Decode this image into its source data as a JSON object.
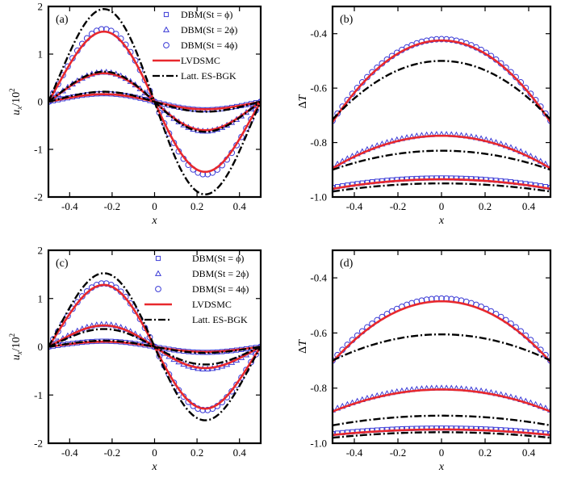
{
  "figure": {
    "colors": {
      "dbm_markers": "#3b3bd6",
      "lvdsmc": "#e8282d",
      "es_bgk": "#000000",
      "frame": "#000000"
    }
  },
  "chart_data": [
    {
      "type": "line",
      "panel_label": "(a)",
      "xlabel": "x",
      "ylabel": "u_x/10^2",
      "xlim": [
        -0.5,
        0.5
      ],
      "ylim": [
        -2,
        2
      ],
      "xticks": [
        -0.4,
        -0.2,
        0,
        0.2,
        0.4
      ],
      "yticks": [
        -2,
        -1,
        0,
        1,
        2
      ],
      "xtick_labels": [
        "-0.4",
        "-0.2",
        "0",
        "0.2",
        "0.4"
      ],
      "ytick_labels": [
        "-2",
        "-1",
        "0",
        "1",
        "2"
      ],
      "legend": {
        "position": "top-right",
        "entries": [
          {
            "label": "DBM(St = ϕ)",
            "marker": "square"
          },
          {
            "label": "DBM(St = 2ϕ)",
            "marker": "triangle"
          },
          {
            "label": "DBM(St = 4ϕ)",
            "marker": "circle"
          },
          {
            "label": "LVDSMC",
            "line": "solid"
          },
          {
            "label": "Latt. ES-BGK",
            "line": "dashdot"
          }
        ]
      },
      "series": [
        {
          "name": "DBM(St = ϕ)",
          "kind": "markers",
          "marker": "square",
          "shape": "antisym",
          "amplitude": 0.16
        },
        {
          "name": "DBM(St = 2ϕ)",
          "kind": "markers",
          "marker": "triangle",
          "shape": "antisym",
          "amplitude": 0.59
        },
        {
          "name": "DBM(St = 4ϕ)",
          "kind": "markers",
          "marker": "circle",
          "shape": "antisym",
          "amplitude": 1.45
        },
        {
          "name": "LVDSMC",
          "kind": "line",
          "style": "solid",
          "shape": "antisym",
          "amplitudes": [
            0.15,
            0.57,
            1.4
          ]
        },
        {
          "name": "Latt. ES-BGK",
          "kind": "line",
          "style": "dashdot",
          "shape": "antisym",
          "amplitudes": [
            0.2,
            0.6,
            1.85
          ]
        }
      ]
    },
    {
      "type": "line",
      "panel_label": "(b)",
      "xlabel": "x",
      "ylabel": "ΔT",
      "xlim": [
        -0.5,
        0.5
      ],
      "ylim": [
        -1.0,
        -0.3
      ],
      "xticks": [
        -0.4,
        -0.2,
        0,
        0.2,
        0.4
      ],
      "yticks": [
        -1.0,
        -0.8,
        -0.6,
        -0.4
      ],
      "xtick_labels": [
        "-0.4",
        "-0.2",
        "0",
        "0.2",
        "0.4"
      ],
      "ytick_labels": [
        "-1.0",
        "-0.8",
        "-0.6",
        "-0.4"
      ],
      "series": [
        {
          "name": "DBM(St = ϕ)",
          "kind": "markers",
          "marker": "square",
          "shape": "parabola",
          "center": -0.93,
          "edge": -0.965
        },
        {
          "name": "DBM(St = 2ϕ)",
          "kind": "markers",
          "marker": "triangle",
          "shape": "parabola",
          "center": -0.77,
          "edge": -0.89
        },
        {
          "name": "DBM(St = 4ϕ)",
          "kind": "markers",
          "marker": "circle",
          "shape": "parabola",
          "center": -0.42,
          "edge": -0.72
        },
        {
          "name": "LVDSMC",
          "kind": "line",
          "style": "solid",
          "shape": "parabola",
          "curves": [
            [
              -0.935,
              -0.97
            ],
            [
              -0.775,
              -0.895
            ],
            [
              -0.425,
              -0.725
            ]
          ]
        },
        {
          "name": "Latt. ES-BGK",
          "kind": "line",
          "style": "dashdot",
          "shape": "parabola",
          "curves": [
            [
              -0.95,
              -0.98
            ],
            [
              -0.83,
              -0.9
            ],
            [
              -0.5,
              -0.715
            ]
          ]
        }
      ]
    },
    {
      "type": "line",
      "panel_label": "(c)",
      "xlabel": "x",
      "ylabel": "u_x/10^2",
      "xlim": [
        -0.5,
        0.5
      ],
      "ylim": [
        -2,
        2
      ],
      "xticks": [
        -0.4,
        -0.2,
        0,
        0.2,
        0.4
      ],
      "yticks": [
        -2,
        -1,
        0,
        1,
        2
      ],
      "xtick_labels": [
        "-0.4",
        "-0.2",
        "0",
        "0.2",
        "0.4"
      ],
      "ytick_labels": [
        "-2",
        "-1",
        "0",
        "1",
        "2"
      ],
      "legend": {
        "position": "top-right",
        "entries": [
          {
            "label": "DBM(St = ϕ)",
            "marker": "square"
          },
          {
            "label": "DBM(St = 2ϕ)",
            "marker": "triangle"
          },
          {
            "label": "DBM(St = 4ϕ)",
            "marker": "circle"
          },
          {
            "label": "LVDSMC",
            "line": "solid"
          },
          {
            "label": "Latt. ES-BGK",
            "line": "dashdot"
          }
        ]
      },
      "series": [
        {
          "name": "DBM(St = ϕ)",
          "kind": "markers",
          "marker": "square",
          "shape": "antisym",
          "amplitude": 0.11
        },
        {
          "name": "DBM(St = 2ϕ)",
          "kind": "markers",
          "marker": "triangle",
          "shape": "antisym",
          "amplitude": 0.44
        },
        {
          "name": "DBM(St = 4ϕ)",
          "kind": "markers",
          "marker": "circle",
          "shape": "antisym",
          "amplitude": 1.25
        },
        {
          "name": "LVDSMC",
          "kind": "line",
          "style": "solid",
          "shape": "antisym",
          "amplitudes": [
            0.1,
            0.42,
            1.22
          ]
        },
        {
          "name": "Latt. ES-BGK",
          "kind": "line",
          "style": "dashdot",
          "shape": "antisym",
          "amplitudes": [
            0.12,
            0.35,
            1.45
          ]
        }
      ]
    },
    {
      "type": "line",
      "panel_label": "(d)",
      "xlabel": "x",
      "ylabel": "ΔT",
      "xlim": [
        -0.5,
        0.5
      ],
      "ylim": [
        -1.0,
        -0.3
      ],
      "xticks": [
        -0.4,
        -0.2,
        0,
        0.2,
        0.4
      ],
      "yticks": [
        -1.0,
        -0.8,
        -0.6,
        -0.4
      ],
      "xtick_labels": [
        "-0.4",
        "-0.2",
        "0",
        "0.2",
        "0.4"
      ],
      "ytick_labels": [
        "-1.0",
        "-0.8",
        "-0.6",
        "-0.4"
      ],
      "series": [
        {
          "name": "DBM(St = ϕ)",
          "kind": "markers",
          "marker": "square",
          "shape": "parabola",
          "center": -0.945,
          "edge": -0.965
        },
        {
          "name": "DBM(St = 2ϕ)",
          "kind": "markers",
          "marker": "triangle",
          "shape": "parabola",
          "center": -0.8,
          "edge": -0.88
        },
        {
          "name": "DBM(St = 4ϕ)",
          "kind": "markers",
          "marker": "circle",
          "shape": "parabola",
          "center": -0.475,
          "edge": -0.7
        },
        {
          "name": "LVDSMC",
          "kind": "line",
          "style": "solid",
          "shape": "parabola",
          "curves": [
            [
              -0.95,
              -0.97
            ],
            [
              -0.805,
              -0.885
            ],
            [
              -0.485,
              -0.705
            ]
          ]
        },
        {
          "name": "Latt. ES-BGK",
          "kind": "line",
          "style": "dashdot",
          "shape": "parabola",
          "curves": [
            [
              -0.96,
              -0.98
            ],
            [
              -0.9,
              -0.935
            ],
            [
              -0.605,
              -0.7
            ]
          ]
        }
      ]
    }
  ]
}
